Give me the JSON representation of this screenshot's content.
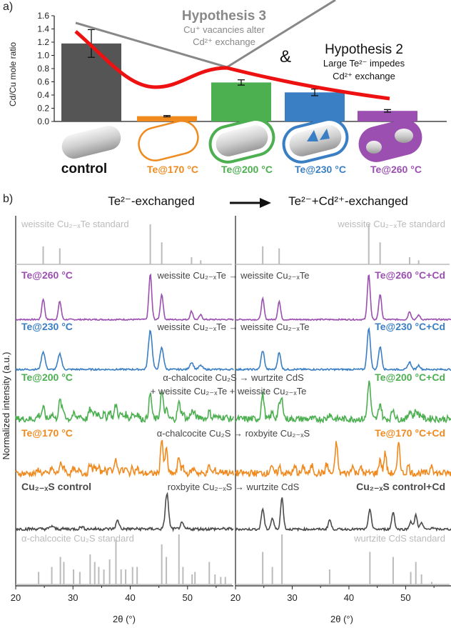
{
  "panel_a": {
    "label": "a)",
    "chart_data": {
      "type": "bar",
      "ylabel": "Cd/Cu mole ratio",
      "ylim": [
        0,
        1.6
      ],
      "yticks": [
        "0.0",
        "0.2",
        "0.4",
        "0.6",
        "0.8",
        "1.0",
        "1.2",
        "1.4",
        "1.6"
      ],
      "categories": [
        "control",
        "Te@170 °C",
        "Te@200 °C",
        "Te@230 °C",
        "Te@260 °C"
      ],
      "values": [
        1.18,
        0.08,
        0.59,
        0.44,
        0.16
      ],
      "errors": [
        0.21,
        0.01,
        0.04,
        0.05,
        0.02
      ],
      "colors": [
        "#555555",
        "#f08a1e",
        "#4caf50",
        "#3a7fc4",
        "#9b4fb0"
      ]
    },
    "hyp3": {
      "title": "Hypothesis 3",
      "line1": "Cu⁺ vacancies alter",
      "line2": "Cd²⁺ exchange"
    },
    "amp": "&",
    "hyp2": {
      "title": "Hypothesis 2",
      "line1": "Large Te²⁻ impedes",
      "line2": "Cd²⁺ exchange"
    },
    "labels": {
      "control": "control",
      "t170": "Te@170 °C",
      "t200": "Te@200 °C",
      "t230": "Te@230 °C",
      "t260": "Te@260 °C"
    }
  },
  "panel_b": {
    "label": "b)",
    "header_left": "Te²⁻-exchanged",
    "header_right": "Te²⁻+Cd²⁺-exchanged",
    "ylabel": "Normalized intensity (a.u.)",
    "xlabel": "2θ (°)",
    "xticks": [
      "20",
      "30",
      "40",
      "50"
    ],
    "colors": {
      "gray": "#bbbbbb",
      "purple": "#9b4fb0",
      "blue": "#3a7fc4",
      "green": "#4caf50",
      "orange": "#f08a1e",
      "dark": "#4a4a4a"
    },
    "left_labels": {
      "weissite_std": "weissite Cu₂₋ₓTe standard",
      "t260": "Te@260 °C",
      "t230": "Te@230 °C",
      "t200": "Te@200 °C",
      "t170": "Te@170 °C",
      "control": "Cu₂₋ₓS control",
      "chalcocite_std": "α-chalcocite Cu₂S standard"
    },
    "right_labels": {
      "weissite_std": "weissite Cu₂₋ₓTe standard",
      "t260": "Te@260 °C+Cd",
      "t230": "Te@230 °C+Cd",
      "t200": "Te@200 °C+Cd",
      "t170": "Te@170 °C+Cd",
      "control": "Cu₂₋ₓS control+Cd",
      "wurtzite_std": "wurtzite CdS standard"
    },
    "transitions": {
      "t260": "weissite Cu₂₋ₓTe → weissite Cu₂₋ₓTe",
      "t230": "weissite Cu₂₋ₓTe → weissite Cu₂₋ₓTe",
      "t200a": "α-chalcocite Cu₂S → wurtzite CdS",
      "t200b": "+ weissite Cu₂₋ₓTe      + weissite Cu₂₋ₓTe",
      "t170": "α-chalcocite Cu₂S → roxbyite Cu₂₋ₓS",
      "control": "roxbyite Cu₂₋ₓS → wurtzite CdS"
    },
    "peaks": {
      "weissite": [
        [
          24.8,
          0.45
        ],
        [
          27.7,
          0.4
        ],
        [
          43.5,
          1.0
        ],
        [
          45.5,
          0.55
        ],
        [
          50.7,
          0.18
        ],
        [
          52.3,
          0.1
        ]
      ],
      "chalcocite": [
        [
          24.0,
          0.25
        ],
        [
          26.3,
          0.35
        ],
        [
          27.8,
          0.55
        ],
        [
          28.4,
          0.45
        ],
        [
          30.1,
          0.3
        ],
        [
          31.2,
          0.25
        ],
        [
          33.0,
          0.6
        ],
        [
          33.8,
          0.45
        ],
        [
          34.5,
          0.35
        ],
        [
          35.4,
          0.3
        ],
        [
          36.4,
          0.5
        ],
        [
          37.5,
          0.9
        ],
        [
          38.4,
          0.3
        ],
        [
          39.2,
          0.3
        ],
        [
          40.4,
          0.35
        ],
        [
          41.2,
          0.35
        ],
        [
          45.5,
          0.8
        ],
        [
          46.3,
          0.55
        ],
        [
          48.5,
          1.0
        ],
        [
          49.2,
          0.35
        ],
        [
          50.8,
          0.2
        ],
        [
          51.3,
          0.25
        ],
        [
          53.8,
          0.45
        ],
        [
          54.8,
          0.2
        ],
        [
          55.8,
          0.15
        ],
        [
          56.6,
          0.15
        ]
      ],
      "wurtzite": [
        [
          24.8,
          0.65
        ],
        [
          26.5,
          0.35
        ],
        [
          28.2,
          1.0
        ],
        [
          36.6,
          0.3
        ],
        [
          43.7,
          0.65
        ],
        [
          47.8,
          0.55
        ],
        [
          50.9,
          0.25
        ],
        [
          51.8,
          0.45
        ],
        [
          52.8,
          0.2
        ],
        [
          54.6,
          0.05
        ]
      ],
      "roxbyite": [
        [
          26.3,
          0.25
        ],
        [
          27.8,
          0.2
        ],
        [
          30.5,
          0.2
        ],
        [
          32.0,
          0.2
        ],
        [
          33.5,
          0.25
        ],
        [
          36.1,
          0.3
        ],
        [
          37.8,
          1.0
        ],
        [
          40.6,
          0.25
        ],
        [
          42.0,
          0.2
        ],
        [
          45.5,
          0.45
        ],
        [
          46.4,
          0.65
        ],
        [
          48.8,
          1.0
        ],
        [
          50.5,
          0.25
        ],
        [
          54.6,
          0.3
        ]
      ]
    }
  }
}
